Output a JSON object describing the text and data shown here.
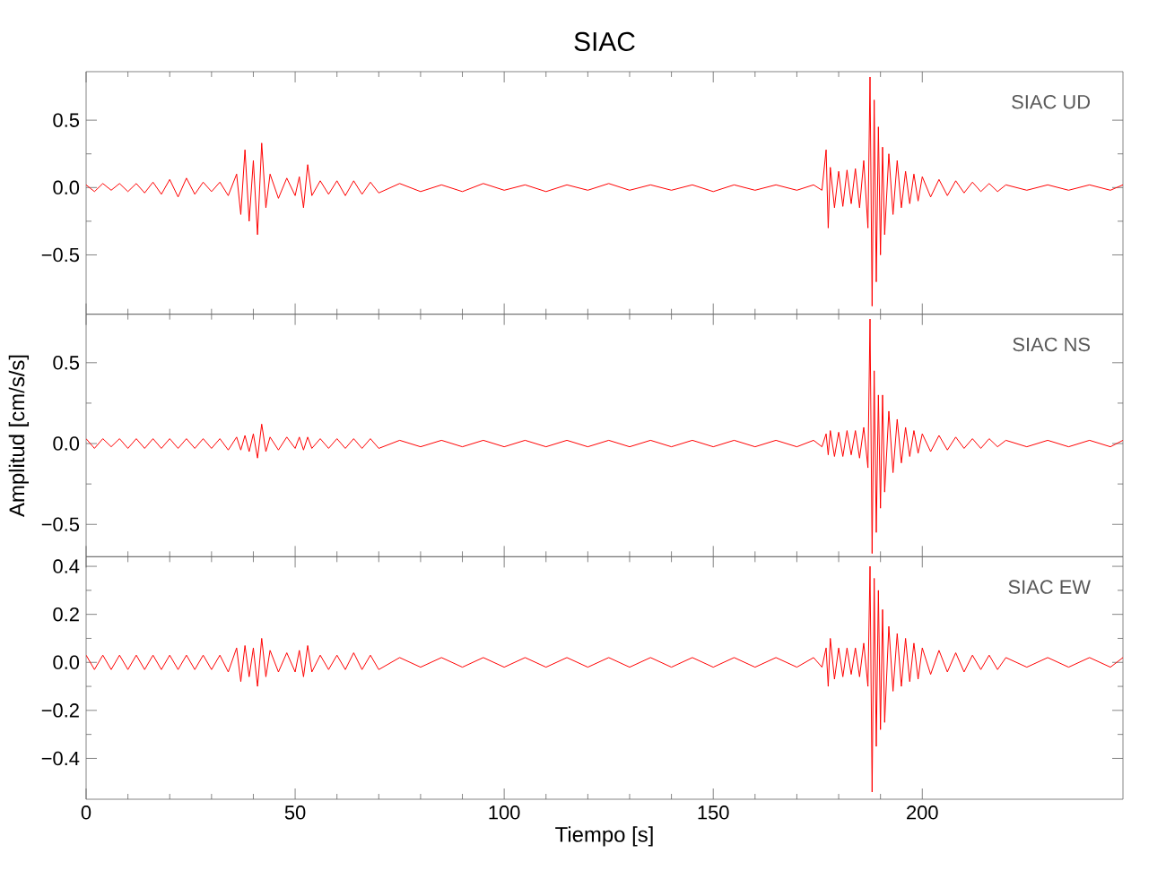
{
  "chart_data": [
    {
      "type": "line",
      "title": "SIAC",
      "color": "#ff0000",
      "xlim": [
        0,
        248
      ],
      "xticks": [
        0,
        50,
        100,
        150,
        200
      ],
      "ylim": [
        -0.94,
        0.86
      ],
      "yticks": [
        {
          "value": -0.5,
          "label": "−0.5"
        },
        {
          "value": 0,
          "label": "0.0"
        },
        0.5
      ],
      "tick_labels": "y",
      "annotations": [
        "SIAC    UD"
      ],
      "x": [
        0,
        2,
        4,
        6,
        8,
        10,
        12,
        14,
        16,
        18,
        20,
        22,
        24,
        26,
        28,
        30,
        32,
        34,
        36,
        37,
        38,
        39,
        40,
        41,
        42,
        43,
        44,
        46,
        48,
        50,
        51,
        52,
        53,
        54,
        56,
        58,
        60,
        62,
        64,
        66,
        68,
        70,
        75,
        80,
        85,
        90,
        95,
        100,
        105,
        110,
        115,
        120,
        125,
        130,
        135,
        140,
        145,
        150,
        155,
        160,
        165,
        170,
        174,
        176,
        177,
        177.5,
        178,
        179,
        180,
        181,
        182,
        183,
        184,
        185,
        186,
        187,
        187.5,
        188,
        188.5,
        189,
        189.5,
        190,
        190.5,
        191,
        192,
        193,
        194,
        195,
        196,
        197,
        198,
        199,
        200,
        202,
        204,
        206,
        208,
        210,
        212,
        214,
        216,
        218,
        220,
        225,
        230,
        235,
        240,
        245,
        248
      ],
      "values": [
        0.02,
        -0.03,
        0.03,
        -0.02,
        0.03,
        -0.03,
        0.03,
        -0.04,
        0.04,
        -0.05,
        0.06,
        -0.07,
        0.07,
        -0.05,
        0.04,
        -0.03,
        0.04,
        -0.06,
        0.1,
        -0.2,
        0.28,
        -0.25,
        0.2,
        -0.35,
        0.33,
        -0.15,
        0.1,
        -0.08,
        0.07,
        -0.06,
        0.08,
        -0.15,
        0.17,
        -0.06,
        0.05,
        -0.05,
        0.05,
        -0.06,
        0.05,
        -0.05,
        0.04,
        -0.04,
        0.03,
        -0.03,
        0.02,
        -0.03,
        0.03,
        -0.02,
        0.02,
        -0.03,
        0.02,
        -0.02,
        0.03,
        -0.02,
        0.02,
        -0.02,
        0.02,
        -0.03,
        0.02,
        -0.02,
        0.02,
        -0.02,
        0.02,
        -0.02,
        0.28,
        -0.3,
        0.15,
        -0.15,
        0.12,
        -0.14,
        0.13,
        -0.12,
        0.14,
        -0.15,
        0.2,
        -0.3,
        0.82,
        -0.88,
        0.65,
        -0.7,
        0.45,
        -0.5,
        0.3,
        -0.35,
        0.25,
        -0.2,
        0.2,
        -0.15,
        0.12,
        -0.12,
        0.1,
        -0.1,
        0.08,
        -0.07,
        0.06,
        -0.06,
        0.05,
        -0.04,
        0.04,
        -0.03,
        0.03,
        -0.03,
        0.02,
        -0.02,
        0.02,
        -0.02,
        0.02,
        -0.02,
        0.02
      ]
    },
    {
      "type": "line",
      "ylabel": "Amplitud [cm/s/s]",
      "color": "#ff0000",
      "xlim": [
        0,
        248
      ],
      "xticks": [
        0,
        50,
        100,
        150,
        200
      ],
      "ylim": [
        -0.7,
        0.8
      ],
      "yticks": [
        {
          "value": -0.5,
          "label": "−0.5"
        },
        {
          "value": 0,
          "label": "0.0"
        },
        0.5
      ],
      "tick_labels": "y",
      "annotations": [
        "SIAC    NS"
      ],
      "x": [
        0,
        2,
        4,
        6,
        8,
        10,
        12,
        14,
        16,
        18,
        20,
        22,
        24,
        26,
        28,
        30,
        32,
        34,
        36,
        37,
        38,
        39,
        40,
        41,
        42,
        43,
        44,
        46,
        48,
        50,
        51,
        52,
        53,
        54,
        56,
        58,
        60,
        62,
        64,
        66,
        68,
        70,
        75,
        80,
        85,
        90,
        95,
        100,
        105,
        110,
        115,
        120,
        125,
        130,
        135,
        140,
        145,
        150,
        155,
        160,
        165,
        170,
        174,
        176,
        177,
        177.5,
        178,
        179,
        180,
        181,
        182,
        183,
        184,
        185,
        186,
        187,
        187.5,
        188,
        188.5,
        189,
        189.5,
        190,
        190.5,
        191,
        192,
        193,
        194,
        195,
        196,
        197,
        198,
        199,
        200,
        202,
        204,
        206,
        208,
        210,
        212,
        214,
        216,
        218,
        220,
        225,
        230,
        235,
        240,
        245,
        248
      ],
      "values": [
        0.03,
        -0.03,
        0.03,
        -0.02,
        0.03,
        -0.03,
        0.03,
        -0.03,
        0.03,
        -0.03,
        0.03,
        -0.03,
        0.03,
        -0.03,
        0.03,
        -0.03,
        0.03,
        -0.04,
        0.04,
        -0.04,
        0.05,
        -0.05,
        0.06,
        -0.09,
        0.12,
        -0.05,
        0.04,
        -0.04,
        0.04,
        -0.03,
        0.04,
        -0.04,
        0.04,
        -0.03,
        0.03,
        -0.03,
        0.03,
        -0.03,
        0.03,
        -0.03,
        0.03,
        -0.03,
        0.02,
        -0.02,
        0.02,
        -0.02,
        0.02,
        -0.02,
        0.02,
        -0.02,
        0.02,
        -0.02,
        0.02,
        -0.02,
        0.02,
        -0.02,
        0.02,
        -0.02,
        0.02,
        -0.02,
        0.02,
        -0.02,
        0.02,
        -0.02,
        0.06,
        -0.07,
        0.08,
        -0.08,
        0.07,
        -0.08,
        0.08,
        -0.07,
        0.08,
        -0.09,
        0.1,
        -0.15,
        0.77,
        -0.68,
        0.45,
        -0.55,
        0.3,
        -0.4,
        0.3,
        -0.3,
        0.2,
        -0.18,
        0.15,
        -0.12,
        0.1,
        -0.08,
        0.08,
        -0.06,
        0.06,
        -0.05,
        0.05,
        -0.04,
        0.04,
        -0.03,
        0.03,
        -0.03,
        0.03,
        -0.02,
        0.02,
        -0.02,
        0.02,
        -0.02,
        0.02,
        -0.02,
        0.02
      ]
    },
    {
      "type": "line",
      "xlabel": "Tiempo [s]",
      "color": "#ff0000",
      "xlim": [
        0,
        248
      ],
      "xticks": [
        0,
        50,
        100,
        150,
        200
      ],
      "ylim": [
        -0.57,
        0.44
      ],
      "yticks": [
        {
          "value": -0.4,
          "label": "−0.4"
        },
        {
          "value": -0.2,
          "label": "−0.2"
        },
        {
          "value": 0,
          "label": "0.0"
        },
        0.2,
        0.4
      ],
      "annotations": [
        "SIAC    EW"
      ],
      "x": [
        0,
        2,
        4,
        6,
        8,
        10,
        12,
        14,
        16,
        18,
        20,
        22,
        24,
        26,
        28,
        30,
        32,
        34,
        36,
        37,
        38,
        39,
        40,
        41,
        42,
        43,
        44,
        46,
        48,
        50,
        51,
        52,
        53,
        54,
        56,
        58,
        60,
        62,
        64,
        66,
        68,
        70,
        75,
        80,
        85,
        90,
        95,
        100,
        105,
        110,
        115,
        120,
        125,
        130,
        135,
        140,
        145,
        150,
        155,
        160,
        165,
        170,
        174,
        176,
        177,
        177.5,
        178,
        179,
        180,
        181,
        182,
        183,
        184,
        185,
        186,
        187,
        187.5,
        188,
        188.5,
        189,
        189.5,
        190,
        190.5,
        191,
        192,
        193,
        194,
        195,
        196,
        197,
        198,
        199,
        200,
        202,
        204,
        206,
        208,
        210,
        212,
        214,
        216,
        218,
        220,
        225,
        230,
        235,
        240,
        245,
        248
      ],
      "values": [
        0.03,
        -0.03,
        0.03,
        -0.03,
        0.03,
        -0.03,
        0.03,
        -0.03,
        0.03,
        -0.03,
        0.03,
        -0.03,
        0.03,
        -0.03,
        0.03,
        -0.03,
        0.03,
        -0.04,
        0.06,
        -0.08,
        0.07,
        -0.06,
        0.06,
        -0.1,
        0.1,
        -0.06,
        0.05,
        -0.04,
        0.04,
        -0.04,
        0.05,
        -0.06,
        0.07,
        -0.04,
        0.03,
        -0.03,
        0.03,
        -0.03,
        0.04,
        -0.03,
        0.03,
        -0.03,
        0.02,
        -0.02,
        0.02,
        -0.02,
        0.02,
        -0.02,
        0.02,
        -0.02,
        0.02,
        -0.02,
        0.02,
        -0.02,
        0.02,
        -0.02,
        0.02,
        -0.02,
        0.02,
        -0.02,
        0.02,
        -0.02,
        0.02,
        -0.02,
        0.06,
        -0.1,
        0.1,
        -0.07,
        0.06,
        -0.06,
        0.06,
        -0.05,
        0.06,
        -0.06,
        0.08,
        -0.1,
        0.4,
        -0.54,
        0.35,
        -0.35,
        0.3,
        -0.28,
        0.22,
        -0.25,
        0.15,
        -0.12,
        0.12,
        -0.1,
        0.1,
        -0.08,
        0.08,
        -0.07,
        0.06,
        -0.05,
        0.05,
        -0.04,
        0.04,
        -0.04,
        0.03,
        -0.03,
        0.03,
        -0.03,
        0.02,
        -0.02,
        0.02,
        -0.02,
        0.02,
        -0.02,
        0.02
      ]
    }
  ]
}
